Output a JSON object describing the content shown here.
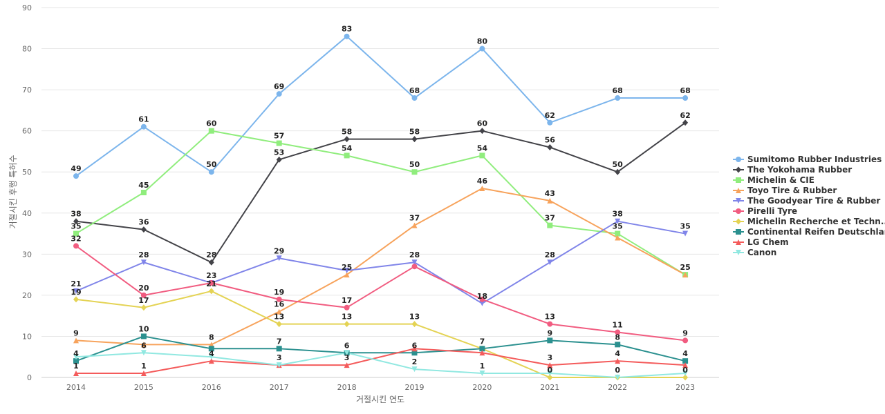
{
  "chart_data": {
    "type": "line",
    "title": "",
    "xlabel": "거절시킨 연도",
    "ylabel": "거절시킨 후행 특허수",
    "x": [
      "2014",
      "2015",
      "2016",
      "2017",
      "2018",
      "2019",
      "2020",
      "2021",
      "2022",
      "2023"
    ],
    "ylim": [
      0,
      90
    ],
    "yticks": [
      0,
      10,
      20,
      30,
      40,
      50,
      60,
      70,
      80,
      90
    ],
    "grid": true,
    "legend_position": "right",
    "series": [
      {
        "name": "Sumitomo Rubber Industries",
        "color": "#7cb5ec",
        "marker": "circle",
        "values": [
          49,
          61,
          50,
          69,
          83,
          68,
          80,
          62,
          68,
          68
        ]
      },
      {
        "name": "The Yokohama Rubber",
        "color": "#434348",
        "marker": "diamond",
        "values": [
          38,
          36,
          28,
          53,
          58,
          58,
          60,
          56,
          50,
          62
        ]
      },
      {
        "name": "Michelin & CIE",
        "color": "#90ed7d",
        "marker": "square",
        "values": [
          35,
          45,
          60,
          57,
          54,
          50,
          54,
          37,
          35,
          25
        ]
      },
      {
        "name": "Toyo Tire & Rubber",
        "color": "#f7a35c",
        "marker": "triangle",
        "values": [
          9,
          8,
          8,
          16,
          25,
          37,
          46,
          43,
          34,
          25
        ]
      },
      {
        "name": "The Goodyear Tire & Rubber",
        "color": "#8085e9",
        "marker": "triangle-down",
        "values": [
          21,
          28,
          23,
          29,
          26,
          28,
          18,
          28,
          38,
          35
        ]
      },
      {
        "name": "Pirelli Tyre",
        "color": "#f15c80",
        "marker": "circle",
        "values": [
          32,
          20,
          23,
          19,
          17,
          27,
          19,
          13,
          11,
          9
        ]
      },
      {
        "name": "Michelin Recherche et Techn...",
        "color": "#e4d354",
        "marker": "diamond",
        "values": [
          19,
          17,
          21,
          13,
          13,
          13,
          7,
          0,
          0,
          0
        ]
      },
      {
        "name": "Continental Reifen Deutschland",
        "color": "#2b908f",
        "marker": "square",
        "values": [
          4,
          10,
          7,
          7,
          6,
          6,
          7,
          9,
          8,
          4
        ]
      },
      {
        "name": "LG Chem",
        "color": "#f45b5b",
        "marker": "triangle",
        "values": [
          1,
          1,
          4,
          3,
          3,
          7,
          6,
          3,
          4,
          3
        ]
      },
      {
        "name": "Canon",
        "color": "#91e8e1",
        "marker": "triangle-down",
        "values": [
          5,
          6,
          5,
          3,
          6,
          2,
          1,
          1,
          0,
          1
        ]
      }
    ],
    "data_labels": [
      {
        "x": "2014",
        "values": [
          "49",
          "38",
          "35",
          "9",
          "21",
          "32",
          "19",
          "4",
          "1"
        ]
      },
      {
        "x": "2015",
        "values": [
          "61",
          "36",
          "45",
          "6",
          "28",
          "20",
          "17",
          "10",
          "1"
        ]
      },
      {
        "x": "2016",
        "values": [
          "50",
          "28",
          "60",
          "8",
          "23",
          "21",
          "4"
        ]
      },
      {
        "x": "2017",
        "values": [
          "69",
          "53",
          "57",
          "16",
          "29",
          "19",
          "13",
          "7",
          "3"
        ]
      },
      {
        "x": "2018",
        "values": [
          "83",
          "58",
          "54",
          "25",
          "17",
          "13",
          "6",
          "3"
        ]
      },
      {
        "x": "2019",
        "values": [
          "68",
          "58",
          "50",
          "37",
          "28",
          "13",
          "6",
          "2"
        ]
      },
      {
        "x": "2020",
        "values": [
          "80",
          "60",
          "54",
          "46",
          "18",
          "7",
          "1"
        ]
      },
      {
        "x": "2021",
        "values": [
          "62",
          "56",
          "37",
          "43",
          "28",
          "13",
          "9",
          "3",
          "0"
        ]
      },
      {
        "x": "2022",
        "values": [
          "68",
          "50",
          "35",
          "38",
          "11",
          "8",
          "4",
          "0"
        ]
      },
      {
        "x": "2023",
        "values": [
          "68",
          "62",
          "25",
          "35",
          "9",
          "4",
          "0"
        ]
      }
    ]
  }
}
